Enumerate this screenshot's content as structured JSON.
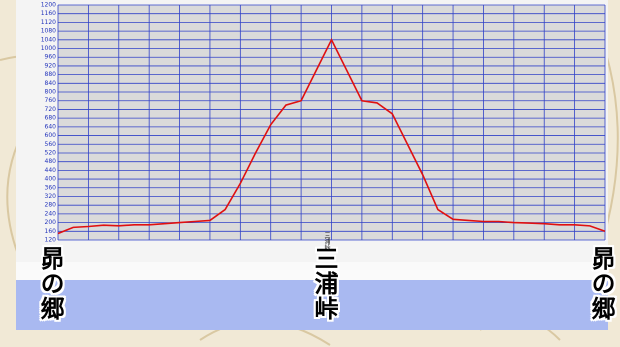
{
  "chart_data": {
    "type": "line",
    "x": [
      0,
      1,
      2,
      3,
      4,
      5,
      6,
      7,
      8,
      9,
      10,
      11,
      12,
      13,
      14,
      15,
      16,
      17,
      18,
      19,
      20,
      21,
      22,
      23,
      24,
      25,
      26,
      27,
      28,
      29,
      30,
      31,
      32,
      33,
      34,
      35,
      36
    ],
    "series": [
      {
        "color": "#e01010",
        "values": [
          150,
          178,
          182,
          188,
          185,
          190,
          190,
          195,
          200,
          205,
          210,
          260,
          380,
          520,
          650,
          740,
          760,
          900,
          1040,
          900,
          760,
          750,
          700,
          560,
          420,
          260,
          215,
          210,
          205,
          205,
          200,
          198,
          195,
          190,
          190,
          185,
          160
        ]
      }
    ],
    "xlim": [
      0,
      36
    ],
    "xticks": [
      0,
      2,
      4,
      6,
      8,
      10,
      12,
      14,
      16,
      18,
      20,
      22,
      24,
      26,
      28,
      30,
      32,
      34,
      36
    ],
    "ylim": [
      120,
      1200
    ],
    "yticks": [
      120,
      160,
      200,
      240,
      280,
      320,
      360,
      400,
      440,
      480,
      520,
      560,
      600,
      640,
      680,
      720,
      760,
      800,
      840,
      880,
      920,
      960,
      1000,
      1040,
      1080,
      1120,
      1160,
      1200
    ],
    "grid": true,
    "places": {
      "start": "昴の郷",
      "peak": "三浦峠",
      "end": "昴の郷"
    }
  }
}
